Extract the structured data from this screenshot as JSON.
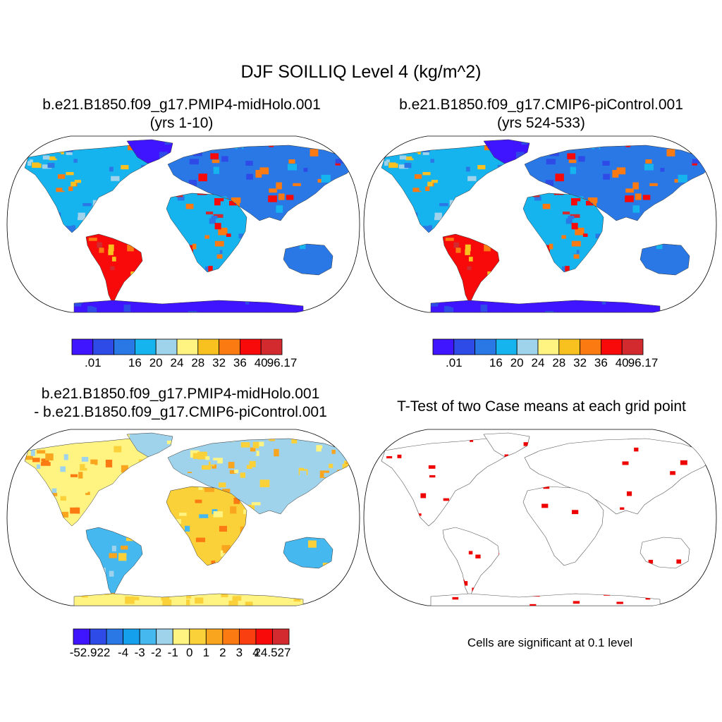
{
  "figure": {
    "title": "DJF SOILLIQ Level 4 (kg/m^2)"
  },
  "panels": [
    {
      "id": "case1",
      "title_line1": "b.e21.B1850.f09_g17.PMIP4-midHolo.001",
      "title_line2": "(yrs 1-10)",
      "colorbar": {
        "colors": [
          "#3f15ff",
          "#2e4be8",
          "#2a78e6",
          "#15b4ef",
          "#9fd3ec",
          "#fff481",
          "#f9c11f",
          "#fb7b12",
          "#f80a0b",
          "#d22a2e"
        ],
        "labels": [
          ".01",
          "16",
          "20",
          "24",
          "28",
          "32",
          "36",
          "40",
          "96.17"
        ],
        "label_boundaries": [
          1,
          3,
          4,
          5,
          6,
          7,
          8,
          9,
          10
        ]
      }
    },
    {
      "id": "case2",
      "title_line1": "b.e21.B1850.f09_g17.CMIP6-piControl.001",
      "title_line2": "(yrs 524-533)",
      "colorbar": {
        "colors": [
          "#3f15ff",
          "#2e4be8",
          "#2a78e6",
          "#15b4ef",
          "#9fd3ec",
          "#fff481",
          "#f9c11f",
          "#fb7b12",
          "#f80a0b",
          "#d22a2e"
        ],
        "labels": [
          ".01",
          "16",
          "20",
          "24",
          "28",
          "32",
          "36",
          "40",
          "96.17"
        ],
        "label_boundaries": [
          1,
          3,
          4,
          5,
          6,
          7,
          8,
          9,
          10
        ]
      }
    },
    {
      "id": "difference",
      "title_line1": "b.e21.B1850.f09_g17.PMIP4-midHolo.001",
      "title_line2": "- b.e21.B1850.f09_g17.CMIP6-piControl.001",
      "colorbar": {
        "colors": [
          "#3f15ff",
          "#2e4be8",
          "#2a78e6",
          "#15a0ee",
          "#44b8ef",
          "#9fd3ec",
          "#fff481",
          "#fbd13a",
          "#f9a51e",
          "#fb7b12",
          "#f93f10",
          "#f80a0b",
          "#d22a2e"
        ],
        "labels": [
          "-52.922",
          "-4",
          "-3",
          "-2",
          "-1",
          "0",
          "1",
          "2",
          "3",
          "4",
          "24.527"
        ],
        "label_boundaries": [
          1,
          3,
          4,
          5,
          6,
          7,
          8,
          9,
          10,
          11,
          12
        ]
      }
    },
    {
      "id": "ttest",
      "title_line1": "T-Test of two Case means at each grid point",
      "note": "Cells are significant at 0.1 level",
      "significant_color": "#ee0000"
    }
  ]
}
